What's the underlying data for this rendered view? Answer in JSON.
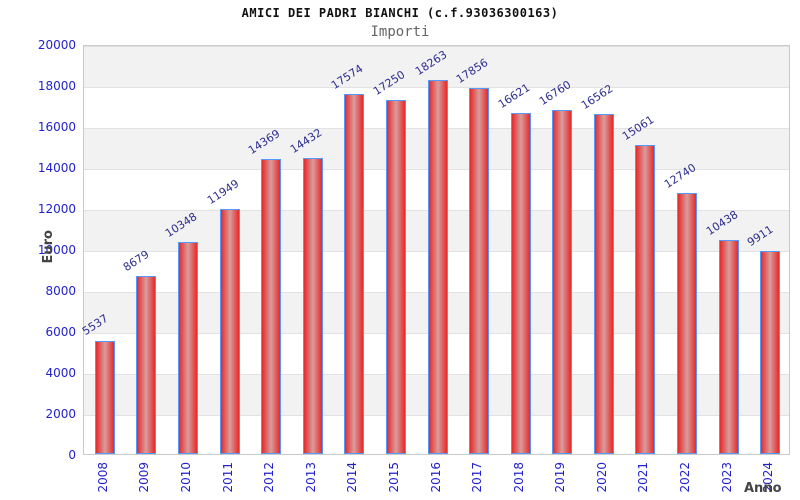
{
  "chart_data": {
    "type": "bar",
    "title": "AMICI DEI PADRI BIANCHI (c.f.93036300163)",
    "subtitle": "Importi",
    "xlabel": "Anno",
    "ylabel": "Euro",
    "categories": [
      "2008",
      "2009",
      "2010",
      "2011",
      "2012",
      "2013",
      "2014",
      "2015",
      "2016",
      "2017",
      "2018",
      "2019",
      "2020",
      "2021",
      "2022",
      "2023",
      "2024"
    ],
    "values": [
      5537,
      8679,
      10348,
      11949,
      14369,
      14432,
      17574,
      17250,
      18263,
      17856,
      16621,
      16760,
      16562,
      15061,
      12740,
      10438,
      9911
    ],
    "ylim": [
      0,
      20000
    ],
    "ytick_step": 2000,
    "legend": "none",
    "grid": "horizontal gridlines with alternating shaded bands every 2000",
    "bar_value_labels": true
  },
  "colors": {
    "title": "#111111",
    "subtitle": "#666666",
    "tick_labels": "#2222cc",
    "bar_value_labels": "#2d2d8f",
    "bar_border": "#5599ff",
    "bar_fill_edge": "#e62a2a",
    "bar_fill_center": "#d99c9c",
    "band": "#f2f2f2",
    "gridline": "#e2e2e2",
    "axis_titles": "#444444",
    "plot_border": "#c9c9c9"
  }
}
